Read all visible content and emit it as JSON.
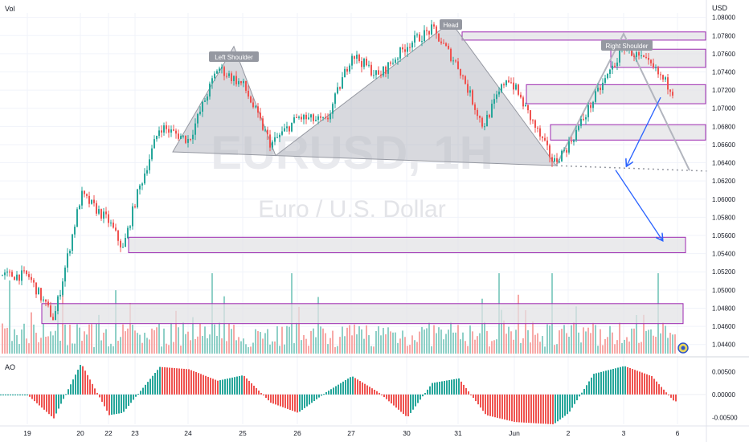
{
  "labels": {
    "vol": "Vol",
    "currency": "USD",
    "ao": "AO",
    "watermark_symbol": "EURUSD, 1H",
    "watermark_name": "Euro / U.S. Dollar"
  },
  "colors": {
    "up": "#26a69a",
    "down": "#ef5350",
    "vol_up": "#8fd0c7",
    "vol_down": "#f7a9a7",
    "zone_fill": "#e3e3e6",
    "zone_border": "#9c27b0",
    "pattern_fill": "#b8b9c3",
    "forecast_arrow": "#2962ff",
    "grid": "#f0f3fa",
    "axis_text": "#131722"
  },
  "chart_data": [
    {
      "type": "candlestick",
      "title": "",
      "price_axis": {
        "label": "USD",
        "ticks": [
          "1.08000",
          "1.07800",
          "1.07600",
          "1.07400",
          "1.07200",
          "1.07000",
          "1.06800",
          "1.06600",
          "1.06400",
          "1.06200",
          "1.06000",
          "1.05800",
          "1.05600",
          "1.05400",
          "1.05200",
          "1.05000",
          "1.04800",
          "1.04600",
          "1.04400"
        ],
        "range": [
          1.043,
          1.0805
        ]
      },
      "time_axis": {
        "ticks": [
          "19",
          "20",
          "22",
          "23",
          "24",
          "25",
          "26",
          "27",
          "30",
          "31",
          "Jun",
          "2",
          "3",
          "6"
        ]
      },
      "price_path_anchors": [
        {
          "x": "19",
          "y": 1.0516
        },
        {
          "x": "19.5",
          "y": 1.0468
        },
        {
          "x": "20",
          "y": 1.0605
        },
        {
          "x": "22",
          "y": 1.0575
        },
        {
          "x": "22.5",
          "y": 1.0545
        },
        {
          "x": "23",
          "y": 1.06
        },
        {
          "x": "23.5",
          "y": 1.068
        },
        {
          "x": "24",
          "y": 1.0665
        },
        {
          "x": "24.5",
          "y": 1.0745
        },
        {
          "x": "25",
          "y": 1.0725
        },
        {
          "x": "25.5",
          "y": 1.066
        },
        {
          "x": "26",
          "y": 1.069
        },
        {
          "x": "26.5",
          "y": 1.0685
        },
        {
          "x": "27",
          "y": 1.076
        },
        {
          "x": "27.5",
          "y": 1.0735
        },
        {
          "x": "30",
          "y": 1.077
        },
        {
          "x": "30.5",
          "y": 1.0787
        },
        {
          "x": "31",
          "y": 1.0745
        },
        {
          "x": "31.3",
          "y": 1.068
        },
        {
          "x": "31.6",
          "y": 1.0735
        },
        {
          "x": "Jun",
          "y": 1.0722
        },
        {
          "x": "1.5",
          "y": 1.064
        },
        {
          "x": "2",
          "y": 1.066
        },
        {
          "x": "2.5",
          "y": 1.071
        },
        {
          "x": "3",
          "y": 1.0768
        },
        {
          "x": "3.5",
          "y": 1.0745
        },
        {
          "x": "4",
          "y": 1.0718
        }
      ],
      "zones": [
        {
          "from": 1.0775,
          "to": 1.0784
        },
        {
          "from": 1.0745,
          "to": 1.0765
        },
        {
          "from": 1.0705,
          "to": 1.0726
        },
        {
          "from": 1.0665,
          "to": 1.0682
        },
        {
          "from": 1.0541,
          "to": 1.0558
        },
        {
          "from": 1.0463,
          "to": 1.0485
        }
      ],
      "annotations": [
        {
          "text": "Left Shoulder",
          "level": 1.0768
        },
        {
          "text": "Head",
          "level": 1.0795
        },
        {
          "text": "Right Shoulder",
          "level": 1.0782
        }
      ],
      "neckline": {
        "start": 1.0652,
        "end": 1.0632
      },
      "forecast_targets": [
        1.0637,
        1.0555
      ]
    },
    {
      "type": "bar",
      "title": "AO",
      "ticks": [
        "0.00500",
        "0.00000",
        "-0.00500"
      ],
      "range": [
        -0.0065,
        0.0075
      ],
      "profile_anchors": [
        {
          "x": "19",
          "y": -0.0002
        },
        {
          "x": "19.5",
          "y": -0.0052
        },
        {
          "x": "20",
          "y": 0.0068
        },
        {
          "x": "22",
          "y": -0.0045
        },
        {
          "x": "22.5",
          "y": -0.004
        },
        {
          "x": "23",
          "y": -0.0005
        },
        {
          "x": "23.5",
          "y": 0.006
        },
        {
          "x": "24",
          "y": 0.0055
        },
        {
          "x": "24.5",
          "y": 0.003
        },
        {
          "x": "25",
          "y": 0.0042
        },
        {
          "x": "25.5",
          "y": -0.0018
        },
        {
          "x": "26",
          "y": -0.004
        },
        {
          "x": "26.5",
          "y": 0.0005
        },
        {
          "x": "27",
          "y": 0.004
        },
        {
          "x": "27.5",
          "y": 0.0005
        },
        {
          "x": "30",
          "y": -0.005
        },
        {
          "x": "30.5",
          "y": 0.0025
        },
        {
          "x": "31",
          "y": 0.0035
        },
        {
          "x": "31.5",
          "y": -0.0045
        },
        {
          "x": "Jun",
          "y": -0.006
        },
        {
          "x": "1.5",
          "y": -0.0065
        },
        {
          "x": "2",
          "y": -0.004
        },
        {
          "x": "2.5",
          "y": 0.0045
        },
        {
          "x": "3",
          "y": 0.0062
        },
        {
          "x": "3.5",
          "y": 0.004
        },
        {
          "x": "4",
          "y": -0.0015
        }
      ]
    }
  ]
}
